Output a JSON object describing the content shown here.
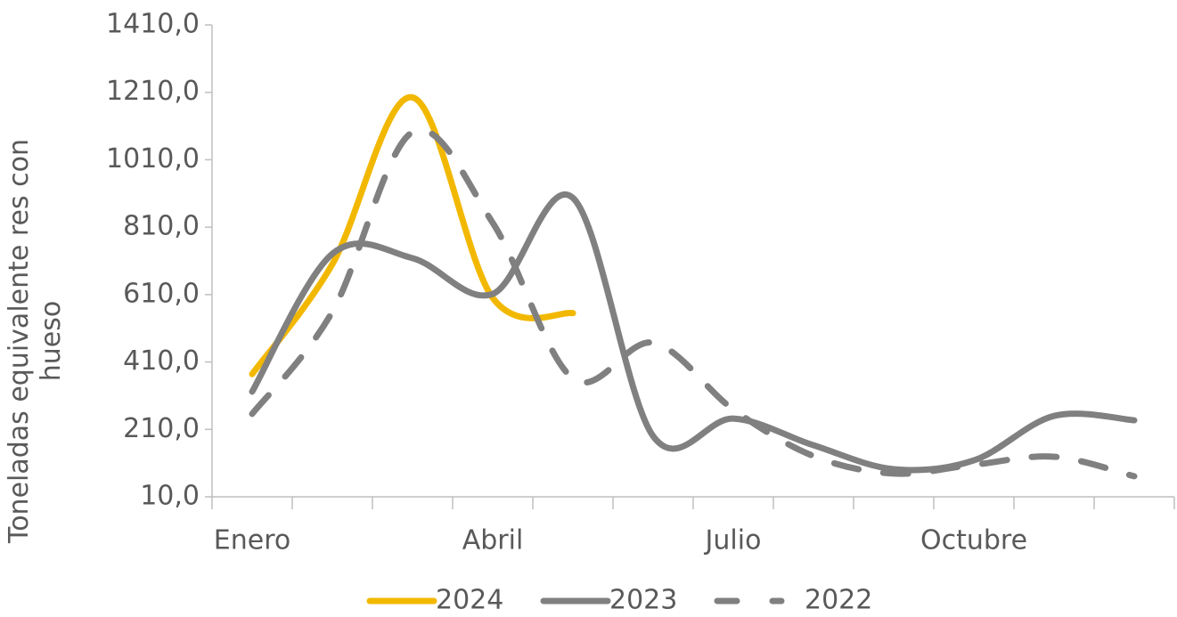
{
  "chart_data": {
    "type": "line",
    "y_label": "Toneladas equivalente res con hueso",
    "categories": [
      "Enero",
      null,
      null,
      "Abril",
      null,
      null,
      "Julio",
      null,
      null,
      "Octubre",
      null,
      null
    ],
    "series": [
      {
        "name": "2024",
        "color": "#f2b800",
        "dash": false,
        "values": [
          374,
          700,
          1195,
          600,
          555,
          null,
          null,
          null,
          null,
          null,
          null,
          null
        ]
      },
      {
        "name": "2023",
        "color": "#808080",
        "dash": false,
        "values": [
          322,
          731,
          718,
          612,
          897,
          190,
          242,
          163,
          92,
          118,
          250,
          237
        ]
      },
      {
        "name": "2022",
        "color": "#808080",
        "dash": true,
        "values": [
          256,
          559,
          1092,
          823,
          361,
          467,
          269,
          131,
          79,
          105,
          129,
          71
        ]
      }
    ],
    "ylim": [
      10,
      1410
    ],
    "yticks": [
      {
        "value": 10,
        "label": "10,0"
      },
      {
        "value": 210,
        "label": "210,0"
      },
      {
        "value": 410,
        "label": "410,0"
      },
      {
        "value": 610,
        "label": "610,0"
      },
      {
        "value": 810,
        "label": "810,0"
      },
      {
        "value": 1010,
        "label": "1010,0"
      },
      {
        "value": 1210,
        "label": "1210,0"
      },
      {
        "value": 1410,
        "label": "1410,0"
      }
    ],
    "legend": "bottom"
  }
}
